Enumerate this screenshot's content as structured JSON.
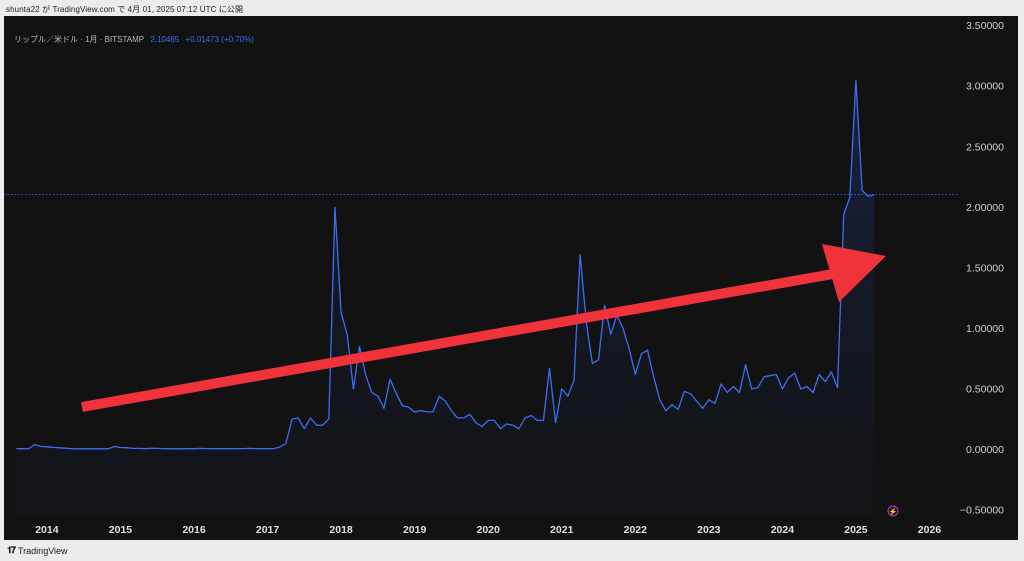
{
  "header": {
    "published": "shunta22 が TradingView.com で 4月 01, 2025 07:12 UTC に公開"
  },
  "legend": {
    "symbol": "リップル／米ドル · 1月 · BITSTAMP",
    "price": "2.10465",
    "change": "+0.01473 (+0.70%)"
  },
  "footer": {
    "brand": "TradingView"
  },
  "colors": {
    "line": "#3d6df5",
    "arrow": "#f0333a",
    "background": "#121212"
  },
  "chart_data": {
    "type": "line",
    "title": "",
    "xlabel": "",
    "ylabel": "",
    "x_ticks": [
      "2014",
      "2015",
      "2016",
      "2017",
      "2018",
      "2019",
      "2020",
      "2021",
      "2022",
      "2023",
      "2024",
      "2025",
      "2026"
    ],
    "y_ticks": [
      "3.50000",
      "3.00000",
      "2.50000",
      "2.00000",
      "1.50000",
      "1.00000",
      "0.50000",
      "0.00000",
      "−0.50000"
    ],
    "ylim": [
      -0.55,
      3.58
    ],
    "xlim": [
      "2013-06",
      "2026-05"
    ],
    "grid": false,
    "last_price_line": 2.10465,
    "annotation": "red upward arrow",
    "series": [
      {
        "values": [
          [
            "2013-08",
            0.006
          ],
          [
            "2013-09",
            0.006
          ],
          [
            "2013-10",
            0.005
          ],
          [
            "2013-11",
            0.04
          ],
          [
            "2013-12",
            0.025
          ],
          [
            "2014-01",
            0.022
          ],
          [
            "2014-02",
            0.017
          ],
          [
            "2014-03",
            0.013
          ],
          [
            "2014-04",
            0.01
          ],
          [
            "2014-05",
            0.006
          ],
          [
            "2014-06",
            0.005
          ],
          [
            "2014-07",
            0.005
          ],
          [
            "2014-08",
            0.005
          ],
          [
            "2014-09",
            0.006
          ],
          [
            "2014-10",
            0.005
          ],
          [
            "2014-11",
            0.005
          ],
          [
            "2014-12",
            0.024
          ],
          [
            "2015-01",
            0.016
          ],
          [
            "2015-02",
            0.014
          ],
          [
            "2015-03",
            0.009
          ],
          [
            "2015-04",
            0.008
          ],
          [
            "2015-05",
            0.006
          ],
          [
            "2015-06",
            0.009
          ],
          [
            "2015-07",
            0.008
          ],
          [
            "2015-08",
            0.007
          ],
          [
            "2015-09",
            0.006
          ],
          [
            "2015-10",
            0.005
          ],
          [
            "2015-11",
            0.005
          ],
          [
            "2015-12",
            0.006
          ],
          [
            "2016-01",
            0.006
          ],
          [
            "2016-02",
            0.008
          ],
          [
            "2016-03",
            0.007
          ],
          [
            "2016-04",
            0.007
          ],
          [
            "2016-05",
            0.006
          ],
          [
            "2016-06",
            0.006
          ],
          [
            "2016-07",
            0.006
          ],
          [
            "2016-08",
            0.006
          ],
          [
            "2016-09",
            0.007
          ],
          [
            "2016-10",
            0.008
          ],
          [
            "2016-11",
            0.007
          ],
          [
            "2016-12",
            0.006
          ],
          [
            "2017-01",
            0.007
          ],
          [
            "2017-02",
            0.007
          ],
          [
            "2017-03",
            0.02
          ],
          [
            "2017-04",
            0.05
          ],
          [
            "2017-05",
            0.25
          ],
          [
            "2017-06",
            0.26
          ],
          [
            "2017-07",
            0.17
          ],
          [
            "2017-08",
            0.26
          ],
          [
            "2017-09",
            0.2
          ],
          [
            "2017-10",
            0.2
          ],
          [
            "2017-11",
            0.25
          ],
          [
            "2017-12",
            2.0
          ],
          [
            "2018-01",
            1.13
          ],
          [
            "2018-02",
            0.95
          ],
          [
            "2018-03",
            0.5
          ],
          [
            "2018-04",
            0.85
          ],
          [
            "2018-05",
            0.62
          ],
          [
            "2018-06",
            0.47
          ],
          [
            "2018-07",
            0.44
          ],
          [
            "2018-08",
            0.34
          ],
          [
            "2018-09",
            0.58
          ],
          [
            "2018-10",
            0.46
          ],
          [
            "2018-11",
            0.36
          ],
          [
            "2018-12",
            0.35
          ],
          [
            "2019-01",
            0.31
          ],
          [
            "2019-02",
            0.32
          ],
          [
            "2019-03",
            0.31
          ],
          [
            "2019-04",
            0.31
          ],
          [
            "2019-05",
            0.44
          ],
          [
            "2019-06",
            0.4
          ],
          [
            "2019-07",
            0.32
          ],
          [
            "2019-08",
            0.26
          ],
          [
            "2019-09",
            0.26
          ],
          [
            "2019-10",
            0.29
          ],
          [
            "2019-11",
            0.22
          ],
          [
            "2019-12",
            0.19
          ],
          [
            "2020-01",
            0.24
          ],
          [
            "2020-02",
            0.24
          ],
          [
            "2020-03",
            0.17
          ],
          [
            "2020-04",
            0.21
          ],
          [
            "2020-05",
            0.2
          ],
          [
            "2020-06",
            0.17
          ],
          [
            "2020-07",
            0.26
          ],
          [
            "2020-08",
            0.28
          ],
          [
            "2020-09",
            0.24
          ],
          [
            "2020-10",
            0.24
          ],
          [
            "2020-11",
            0.67
          ],
          [
            "2020-12",
            0.22
          ],
          [
            "2021-01",
            0.5
          ],
          [
            "2021-02",
            0.44
          ],
          [
            "2021-03",
            0.57
          ],
          [
            "2021-04",
            1.61
          ],
          [
            "2021-05",
            1.05
          ],
          [
            "2021-06",
            0.71
          ],
          [
            "2021-07",
            0.74
          ],
          [
            "2021-08",
            1.19
          ],
          [
            "2021-09",
            0.95
          ],
          [
            "2021-10",
            1.11
          ],
          [
            "2021-11",
            1.0
          ],
          [
            "2021-12",
            0.83
          ],
          [
            "2022-01",
            0.62
          ],
          [
            "2022-02",
            0.79
          ],
          [
            "2022-03",
            0.82
          ],
          [
            "2022-04",
            0.6
          ],
          [
            "2022-05",
            0.41
          ],
          [
            "2022-06",
            0.32
          ],
          [
            "2022-07",
            0.37
          ],
          [
            "2022-08",
            0.33
          ],
          [
            "2022-09",
            0.48
          ],
          [
            "2022-10",
            0.46
          ],
          [
            "2022-11",
            0.4
          ],
          [
            "2022-12",
            0.34
          ],
          [
            "2023-01",
            0.41
          ],
          [
            "2023-02",
            0.38
          ],
          [
            "2023-03",
            0.54
          ],
          [
            "2023-04",
            0.47
          ],
          [
            "2023-05",
            0.52
          ],
          [
            "2023-06",
            0.47
          ],
          [
            "2023-07",
            0.7
          ],
          [
            "2023-08",
            0.5
          ],
          [
            "2023-09",
            0.51
          ],
          [
            "2023-10",
            0.6
          ],
          [
            "2023-11",
            0.61
          ],
          [
            "2023-12",
            0.62
          ],
          [
            "2024-01",
            0.5
          ],
          [
            "2024-02",
            0.59
          ],
          [
            "2024-03",
            0.63
          ],
          [
            "2024-04",
            0.5
          ],
          [
            "2024-05",
            0.52
          ],
          [
            "2024-06",
            0.47
          ],
          [
            "2024-07",
            0.62
          ],
          [
            "2024-08",
            0.56
          ],
          [
            "2024-09",
            0.64
          ],
          [
            "2024-10",
            0.51
          ],
          [
            "2024-11",
            1.94
          ],
          [
            "2024-12",
            2.08
          ],
          [
            "2025-01",
            3.05
          ],
          [
            "2025-02",
            2.14
          ],
          [
            "2025-03",
            2.09
          ],
          [
            "2025-04",
            2.10465
          ]
        ]
      }
    ]
  }
}
